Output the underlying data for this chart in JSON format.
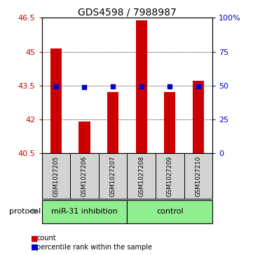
{
  "title": "GDS4598 / 7988987",
  "samples": [
    "GSM1027205",
    "GSM1027206",
    "GSM1027207",
    "GSM1027208",
    "GSM1027209",
    "GSM1027210"
  ],
  "bar_values": [
    45.15,
    41.9,
    43.2,
    46.4,
    43.2,
    43.7
  ],
  "percentile_values": [
    43.45,
    43.42,
    43.45,
    43.45,
    43.45,
    43.45
  ],
  "ylim_left": [
    40.5,
    46.5
  ],
  "ylim_right": [
    0,
    100
  ],
  "yticks_left": [
    40.5,
    42.0,
    43.5,
    45.0,
    46.5
  ],
  "yticks_right": [
    0,
    25,
    50,
    75,
    100
  ],
  "ytick_labels_right": [
    "0",
    "25",
    "50",
    "75",
    "100%"
  ],
  "bar_color": "#cc0000",
  "percentile_color": "#0000cc",
  "bar_bottom": 40.5,
  "groups": [
    {
      "label": "miR-31 inhibition",
      "indices": [
        0,
        1,
        2
      ],
      "color": "#90ee90"
    },
    {
      "label": "control",
      "indices": [
        3,
        4,
        5
      ],
      "color": "#90ee90"
    }
  ],
  "protocol_label": "protocol",
  "sample_box_color": "#d3d3d3",
  "title_fontsize": 10,
  "tick_fontsize": 8,
  "label_fontsize": 7.5
}
